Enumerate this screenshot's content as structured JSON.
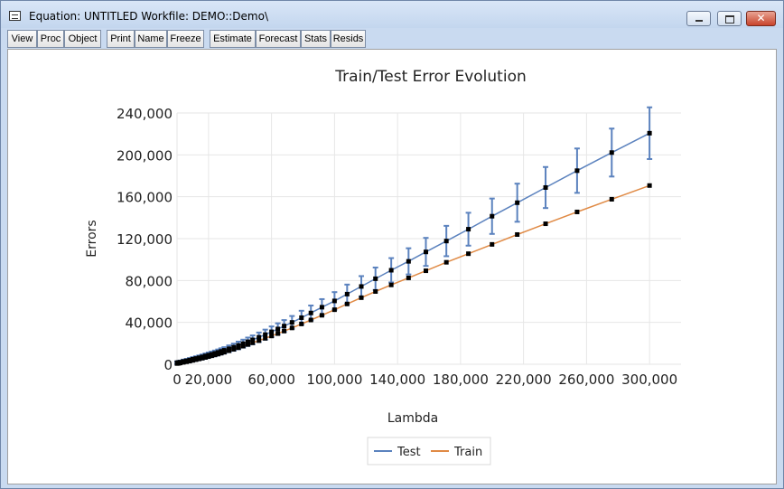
{
  "window": {
    "title": "Equation: UNTITLED   Workfile: DEMO::Demo\\"
  },
  "toolbar": {
    "buttons": [
      "View",
      "Proc",
      "Object",
      "Print",
      "Name",
      "Freeze",
      "Estimate",
      "Forecast",
      "Stats",
      "Resids"
    ]
  },
  "icons": {
    "system_menu": "window-menu-icon",
    "minimize": "minimize-icon",
    "maximize": "maximize-icon",
    "close": "close-icon"
  },
  "colors": {
    "test": "#5b82be",
    "train": "#e08a45",
    "marker": "#000000"
  },
  "chart_data": {
    "type": "line",
    "title": "Train/Test Error Evolution",
    "xlabel": "Lambda",
    "ylabel": "Errors",
    "xlim": [
      0,
      320000
    ],
    "ylim": [
      0,
      240000
    ],
    "x_ticks": [
      "0",
      "20,000",
      "60,000",
      "100,000",
      "140,000",
      "180,000",
      "220,000",
      "260,000",
      "300,000"
    ],
    "y_ticks": [
      "0",
      "40,000",
      "80,000",
      "120,000",
      "160,000",
      "200,000",
      "240,000"
    ],
    "grid": true,
    "legend_position": "bottom",
    "x": [
      0,
      1000,
      2000,
      4000,
      6000,
      8000,
      10000,
      12000,
      14000,
      16000,
      18000,
      20000,
      22000,
      24000,
      26000,
      28000,
      30000,
      33000,
      36000,
      39000,
      42000,
      45000,
      48000,
      52000,
      56000,
      60000,
      64000,
      68000,
      73000,
      79000,
      85000,
      92000,
      100000,
      108000,
      117000,
      126000,
      136000,
      147000,
      158000,
      171000,
      185000,
      200000,
      216000,
      234000,
      254000,
      276000,
      300000
    ],
    "series": [
      {
        "name": "Test",
        "values": [
          1500,
          1700,
          2000,
          2700,
          3300,
          4000,
          4800,
          5500,
          6200,
          7000,
          7900,
          8700,
          9500,
          10400,
          11300,
          12300,
          13300,
          14800,
          16300,
          18000,
          19700,
          21500,
          23300,
          25800,
          28300,
          31000,
          33700,
          36500,
          40000,
          44500,
          49000,
          54500,
          60500,
          67000,
          74300,
          81700,
          89800,
          98300,
          107300,
          117700,
          129000,
          141400,
          154300,
          168800,
          184900,
          202200,
          220700
        ],
        "errors": [
          1200,
          1400,
          1500,
          1700,
          1800,
          1900,
          2000,
          2100,
          2200,
          2300,
          2400,
          2500,
          2600,
          2700,
          2800,
          2900,
          3000,
          3200,
          3400,
          3600,
          3800,
          4000,
          4200,
          4500,
          4800,
          5100,
          5400,
          5700,
          6100,
          6600,
          7100,
          7700,
          8400,
          9100,
          9900,
          10700,
          11600,
          12500,
          13400,
          14500,
          15700,
          16900,
          18200,
          19600,
          21200,
          22900,
          24700
        ]
      },
      {
        "name": "Train",
        "values": [
          700,
          900,
          1200,
          1800,
          2400,
          3000,
          3700,
          4400,
          5100,
          5800,
          6500,
          7300,
          8100,
          8900,
          9700,
          10600,
          11500,
          12900,
          14300,
          15800,
          17300,
          18900,
          20500,
          22600,
          24800,
          27000,
          29300,
          31700,
          34700,
          38500,
          42300,
          46800,
          52100,
          57600,
          63600,
          69500,
          75800,
          82500,
          89300,
          97400,
          105600,
          114500,
          123900,
          134200,
          145500,
          157600,
          170700
        ]
      }
    ]
  }
}
